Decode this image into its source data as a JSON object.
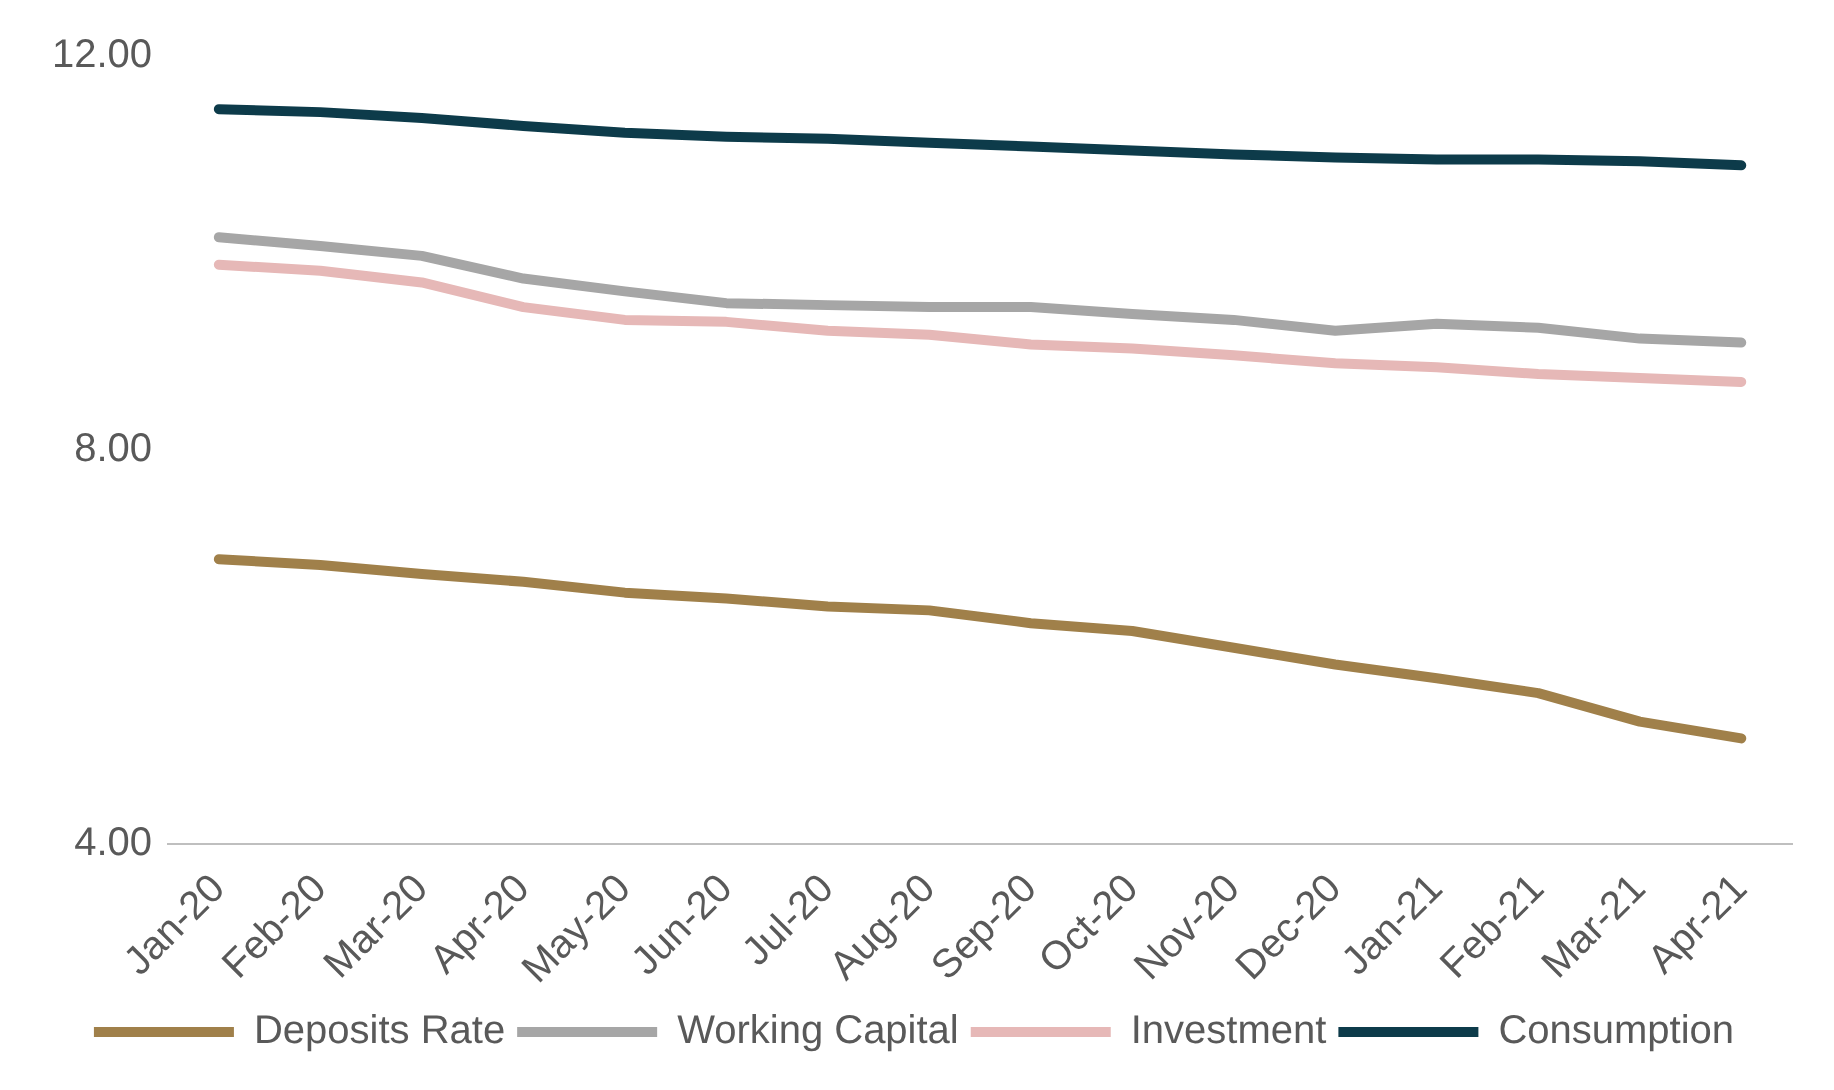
{
  "chart_data": {
    "type": "line",
    "categories": [
      "Jan-20",
      "Feb-20",
      "Mar-20",
      "Apr-20",
      "May-20",
      "Jun-20",
      "Jul-20",
      "Aug-20",
      "Sep-20",
      "Oct-20",
      "Nov-20",
      "Dec-20",
      "Jan-21",
      "Feb-21",
      "Mar-21",
      "Apr-21"
    ],
    "series": [
      {
        "name": "Deposits Rate",
        "color": "#a0804a",
        "values": [
          6.89,
          6.83,
          6.74,
          6.66,
          6.55,
          6.49,
          6.41,
          6.37,
          6.24,
          6.16,
          5.99,
          5.82,
          5.68,
          5.53,
          5.24,
          5.07
        ]
      },
      {
        "name": "Working Capital",
        "color": "#a6a6a6",
        "values": [
          10.16,
          10.07,
          9.97,
          9.74,
          9.61,
          9.49,
          9.47,
          9.45,
          9.45,
          9.38,
          9.32,
          9.21,
          9.28,
          9.24,
          9.13,
          9.09
        ]
      },
      {
        "name": "Investment",
        "color": "#e6b8b7",
        "values": [
          9.88,
          9.82,
          9.7,
          9.45,
          9.32,
          9.3,
          9.21,
          9.17,
          9.07,
          9.03,
          8.96,
          8.88,
          8.84,
          8.77,
          8.73,
          8.69
        ]
      },
      {
        "name": "Consumption",
        "color": "#0d3b4a",
        "values": [
          11.46,
          11.43,
          11.37,
          11.29,
          11.22,
          11.18,
          11.16,
          11.12,
          11.08,
          11.04,
          11.0,
          10.97,
          10.95,
          10.95,
          10.93,
          10.89
        ]
      }
    ],
    "ylim": [
      4,
      12
    ],
    "yticks": [
      {
        "value": 4,
        "label": "4.00"
      },
      {
        "value": 8,
        "label": "8.00"
      },
      {
        "value": 12,
        "label": "12.00"
      }
    ],
    "grid": false,
    "legend": "bottom",
    "marker": "none",
    "line_style": "solid"
  }
}
